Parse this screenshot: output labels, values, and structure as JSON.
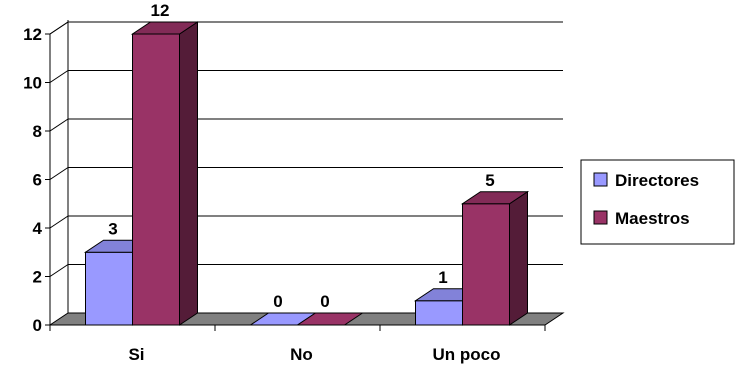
{
  "chart_data": {
    "type": "bar",
    "categories": [
      "Si",
      "No",
      "Un poco"
    ],
    "series": [
      {
        "name": "Directores",
        "values": [
          3,
          0,
          1
        ],
        "color": "#9999ff"
      },
      {
        "name": "Maestros",
        "values": [
          12,
          0,
          5
        ],
        "color": "#993366"
      }
    ],
    "y_ticks": [
      "0",
      "2",
      "4",
      "6",
      "8",
      "10",
      "12"
    ],
    "ylim": [
      0,
      12
    ],
    "grid": true,
    "three_d": true,
    "legend_position": "right",
    "floor_color": "#808080"
  }
}
